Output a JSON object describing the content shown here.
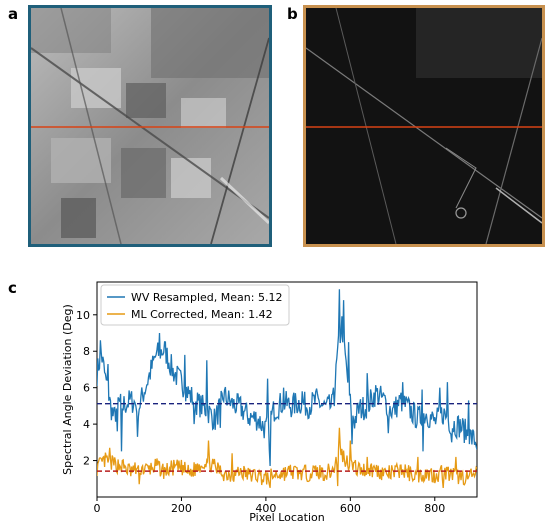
{
  "panels": {
    "a": {
      "letter": "a",
      "border_color": "#1f5f7a"
    },
    "b": {
      "letter": "b",
      "border_color": "#c8914f"
    },
    "c": {
      "letter": "c"
    }
  },
  "colors": {
    "wv": "#1f77b4",
    "ml": "#e69a14",
    "wv_mean_line": "#1a237e",
    "ml_mean_line": "#b71c1c",
    "transect": "#d84315"
  },
  "chart_data": {
    "type": "line",
    "title": "",
    "xlabel": "Pixel Location",
    "ylabel": "Spectral Angle Deviation (Deg)",
    "xlim": [
      0,
      900
    ],
    "ylim": [
      0,
      11.8
    ],
    "xticks": [
      0,
      200,
      400,
      600,
      800
    ],
    "yticks": [
      2,
      4,
      6,
      8,
      10
    ],
    "legend_position": "top-left",
    "series": [
      {
        "name": "WV Resampled, Mean: 5.12",
        "mean": 5.12,
        "color": "#1f77b4",
        "anchors": [
          [
            0,
            6.8
          ],
          [
            10,
            7.9
          ],
          [
            20,
            6.5
          ],
          [
            30,
            5.2
          ],
          [
            40,
            4.3
          ],
          [
            50,
            5.2
          ],
          [
            60,
            5.0
          ],
          [
            80,
            5.3
          ],
          [
            100,
            5.0
          ],
          [
            120,
            6.4
          ],
          [
            140,
            7.8
          ],
          [
            160,
            8.1
          ],
          [
            180,
            6.9
          ],
          [
            200,
            6.3
          ],
          [
            220,
            5.6
          ],
          [
            240,
            5.1
          ],
          [
            260,
            4.8
          ],
          [
            280,
            4.2
          ],
          [
            300,
            5.6
          ],
          [
            320,
            5.1
          ],
          [
            340,
            4.9
          ],
          [
            360,
            4.4
          ],
          [
            380,
            4.3
          ],
          [
            400,
            3.7
          ],
          [
            420,
            4.8
          ],
          [
            440,
            5.2
          ],
          [
            460,
            5.0
          ],
          [
            480,
            5.2
          ],
          [
            500,
            5.0
          ],
          [
            520,
            5.3
          ],
          [
            540,
            4.9
          ],
          [
            560,
            5.0
          ],
          [
            570,
            7.9
          ],
          [
            580,
            9.5
          ],
          [
            590,
            7.2
          ],
          [
            600,
            5.1
          ],
          [
            610,
            4.2
          ],
          [
            620,
            4.8
          ],
          [
            640,
            5.0
          ],
          [
            660,
            5.7
          ],
          [
            680,
            5.3
          ],
          [
            700,
            4.7
          ],
          [
            720,
            5.3
          ],
          [
            740,
            4.8
          ],
          [
            760,
            4.3
          ],
          [
            780,
            4.6
          ],
          [
            800,
            4.1
          ],
          [
            820,
            4.6
          ],
          [
            840,
            4.0
          ],
          [
            860,
            3.9
          ],
          [
            880,
            3.4
          ],
          [
            900,
            3.0
          ]
        ],
        "peaks": [
          [
            8,
            8.6
          ],
          [
            26,
            7.3
          ],
          [
            148,
            9.0
          ],
          [
            208,
            7.8
          ],
          [
            260,
            7.5
          ],
          [
            405,
            6.5
          ],
          [
            442,
            6.0
          ],
          [
            487,
            5.8
          ],
          [
            560,
            6.0
          ],
          [
            575,
            11.4
          ],
          [
            584,
            10.8
          ],
          [
            596,
            8.5
          ],
          [
            640,
            6.8
          ],
          [
            690,
            7.2
          ],
          [
            725,
            6.3
          ],
          [
            770,
            5.9
          ],
          [
            812,
            6.0
          ],
          [
            830,
            6.3
          ],
          [
            880,
            5.3
          ]
        ],
        "troughs": [
          [
            48,
            3.6
          ],
          [
            58,
            2.5
          ],
          [
            96,
            3.3
          ],
          [
            231,
            4.0
          ],
          [
            292,
            3.8
          ],
          [
            408,
            2.6
          ],
          [
            410,
            1.7
          ],
          [
            605,
            2.9
          ],
          [
            690,
            3.5
          ],
          [
            772,
            2.5
          ],
          [
            840,
            3.0
          ],
          [
            900,
            2.6
          ]
        ],
        "noise": 0.7,
        "seed": 7
      },
      {
        "name": "ML Corrected, Mean: 1.42",
        "mean": 1.42,
        "color": "#e69a14",
        "anchors": [
          [
            0,
            1.6
          ],
          [
            20,
            2.0
          ],
          [
            40,
            1.8
          ],
          [
            60,
            1.7
          ],
          [
            80,
            1.4
          ],
          [
            100,
            1.6
          ],
          [
            120,
            1.5
          ],
          [
            140,
            1.7
          ],
          [
            160,
            1.4
          ],
          [
            180,
            1.6
          ],
          [
            200,
            1.6
          ],
          [
            220,
            1.3
          ],
          [
            240,
            1.7
          ],
          [
            260,
            2.0
          ],
          [
            280,
            1.6
          ],
          [
            300,
            1.3
          ],
          [
            320,
            1.2
          ],
          [
            340,
            1.4
          ],
          [
            360,
            1.2
          ],
          [
            380,
            1.2
          ],
          [
            400,
            1.0
          ],
          [
            420,
            1.2
          ],
          [
            440,
            1.3
          ],
          [
            460,
            1.4
          ],
          [
            480,
            1.3
          ],
          [
            500,
            1.3
          ],
          [
            520,
            1.4
          ],
          [
            540,
            1.3
          ],
          [
            560,
            1.5
          ],
          [
            575,
            2.6
          ],
          [
            590,
            2.0
          ],
          [
            600,
            1.8
          ],
          [
            620,
            1.5
          ],
          [
            640,
            1.5
          ],
          [
            660,
            1.5
          ],
          [
            680,
            1.3
          ],
          [
            700,
            1.3
          ],
          [
            720,
            1.5
          ],
          [
            740,
            1.3
          ],
          [
            760,
            1.2
          ],
          [
            780,
            1.3
          ],
          [
            800,
            1.2
          ],
          [
            820,
            1.4
          ],
          [
            840,
            1.2
          ],
          [
            860,
            1.1
          ],
          [
            880,
            1.1
          ],
          [
            900,
            1.2
          ]
        ],
        "peaks": [
          [
            30,
            2.7
          ],
          [
            265,
            3.1
          ],
          [
            320,
            2.4
          ],
          [
            575,
            3.8
          ],
          [
            600,
            3.1
          ],
          [
            640,
            2.2
          ],
          [
            760,
            2.2
          ],
          [
            850,
            2.2
          ]
        ],
        "troughs": [
          [
            100,
            0.7
          ],
          [
            410,
            0.5
          ],
          [
            570,
            0.6
          ],
          [
            820,
            0.5
          ]
        ],
        "noise": 0.45,
        "seed": 13
      }
    ]
  }
}
